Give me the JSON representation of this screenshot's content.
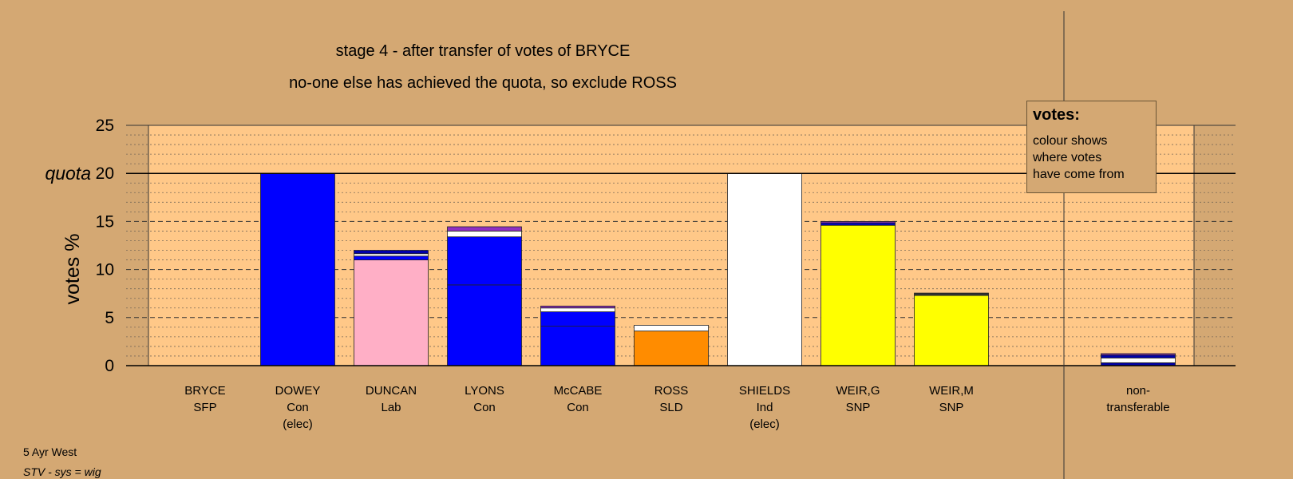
{
  "chart_data": {
    "type": "bar",
    "title": "stage 4 - after transfer of votes of BRYCE",
    "subtitle": "no-one else has achieved the quota, so exclude ROSS",
    "ylabel": "votes %",
    "ylim": [
      0,
      25
    ],
    "yticks": [
      0,
      5,
      10,
      15,
      20,
      25
    ],
    "quota": {
      "label": "quota",
      "value": 20
    },
    "grid": true,
    "categories": [
      {
        "name": "BRYCE",
        "party": "SFP",
        "note": ""
      },
      {
        "name": "DOWEY",
        "party": "Con",
        "note": "(elec)"
      },
      {
        "name": "DUNCAN",
        "party": "Lab",
        "note": ""
      },
      {
        "name": "LYONS",
        "party": "Con",
        "note": ""
      },
      {
        "name": "McCABE",
        "party": "Con",
        "note": ""
      },
      {
        "name": "ROSS",
        "party": "SLD",
        "note": ""
      },
      {
        "name": "SHIELDS",
        "party": "Ind",
        "note": "(elec)"
      },
      {
        "name": "WEIR,G",
        "party": "SNP",
        "note": ""
      },
      {
        "name": "WEIR,M",
        "party": "SNP",
        "note": ""
      },
      {
        "name": "non-",
        "party": "transferable",
        "note": ""
      }
    ],
    "segments": [
      [],
      [
        {
          "value": 20.0,
          "color": "#0000ff"
        }
      ],
      [
        {
          "value": 11.0,
          "color": "#ffafc6"
        },
        {
          "value": 0.4,
          "color": "#0000ff"
        },
        {
          "value": 0.25,
          "color": "#ffffff"
        },
        {
          "value": 0.35,
          "color": "#0000aa"
        }
      ],
      [
        {
          "value": 8.4,
          "color": "#0000ff"
        },
        {
          "value": 5.0,
          "color": "#0000ff"
        },
        {
          "value": 0.6,
          "color": "#ffffff"
        },
        {
          "value": 0.45,
          "color": "#8e2fc2"
        }
      ],
      [
        {
          "value": 4.1,
          "color": "#0000ff"
        },
        {
          "value": 1.5,
          "color": "#0000ff"
        },
        {
          "value": 0.4,
          "color": "#ffffff"
        },
        {
          "value": 0.2,
          "color": "#8e2fc2"
        }
      ],
      [
        {
          "value": 3.6,
          "color": "#ff8c00"
        },
        {
          "value": 0.6,
          "color": "#ffffff"
        }
      ],
      [
        {
          "value": 20.0,
          "color": "#ffffff"
        }
      ],
      [
        {
          "value": 14.6,
          "color": "#ffff00"
        },
        {
          "value": 0.25,
          "color": "#0000cc"
        },
        {
          "value": 0.15,
          "color": "#8e2fc2"
        }
      ],
      [
        {
          "value": 7.3,
          "color": "#ffff00"
        },
        {
          "value": 0.25,
          "color": "#333333"
        }
      ],
      [
        {
          "value": 0.3,
          "color": "#0000aa"
        },
        {
          "value": 0.5,
          "color": "#ffffff"
        },
        {
          "value": 0.3,
          "color": "#0000aa"
        },
        {
          "value": 0.15,
          "color": "#8e2fc2"
        }
      ]
    ],
    "colors": {
      "background": "#d4a873",
      "plot_area": "#ffc888"
    }
  },
  "legend": {
    "title": "votes:",
    "text": "colour shows\nwhere votes\nhave come from"
  },
  "footer": {
    "line1": "5 Ayr West",
    "line2": "STV - sys = wig"
  }
}
